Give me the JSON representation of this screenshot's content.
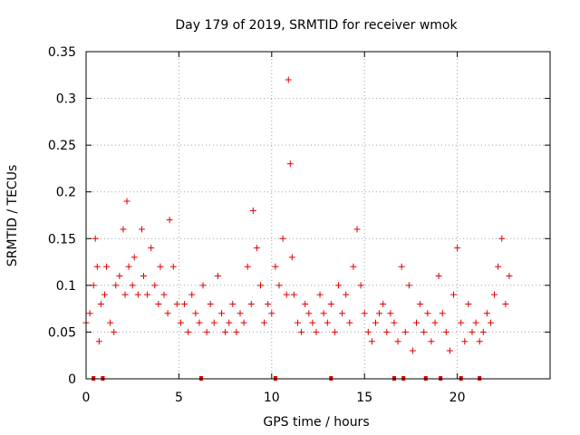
{
  "chart_data": {
    "type": "scatter",
    "title": "Day 179 of 2019, SRMTID for receiver wmok",
    "xlabel": "GPS time / hours",
    "ylabel": "SRMTID / TECUs",
    "xlim": [
      0,
      25
    ],
    "ylim": [
      0,
      0.35
    ],
    "x_ticks": [
      0,
      5,
      10,
      15,
      20
    ],
    "y_ticks": [
      0,
      0.05,
      0.1,
      0.15,
      0.2,
      0.25,
      0.3,
      0.35
    ],
    "x_tick_labels": [
      "0",
      "5",
      "10",
      "15",
      "20"
    ],
    "y_tick_labels": [
      "0",
      "0.05",
      "0.1",
      "0.15",
      "0.2",
      "0.25",
      "0.3",
      "0.35"
    ],
    "grid": true,
    "marker": "+",
    "color": "#e00000",
    "series": [
      {
        "name": "SRMTID",
        "x": [
          0.0,
          0.2,
          0.4,
          0.5,
          0.6,
          0.7,
          0.8,
          1.0,
          1.1,
          1.3,
          1.5,
          1.6,
          1.8,
          2.0,
          2.1,
          2.2,
          2.3,
          2.5,
          2.6,
          2.8,
          3.0,
          3.1,
          3.3,
          3.5,
          3.7,
          3.9,
          4.0,
          4.2,
          4.4,
          4.5,
          4.7,
          4.9,
          5.1,
          5.3,
          5.5,
          5.7,
          5.9,
          6.1,
          6.3,
          6.5,
          6.7,
          6.9,
          7.1,
          7.3,
          7.5,
          7.7,
          7.9,
          8.1,
          8.3,
          8.5,
          8.7,
          8.9,
          9.0,
          9.2,
          9.4,
          9.6,
          9.8,
          10.0,
          10.2,
          10.4,
          10.6,
          10.8,
          10.9,
          11.0,
          11.1,
          11.2,
          11.4,
          11.6,
          11.8,
          12.0,
          12.2,
          12.4,
          12.6,
          12.8,
          13.0,
          13.2,
          13.4,
          13.6,
          13.8,
          14.0,
          14.2,
          14.4,
          14.6,
          14.8,
          15.0,
          15.2,
          15.4,
          15.6,
          15.8,
          16.0,
          16.2,
          16.4,
          16.6,
          16.8,
          17.0,
          17.2,
          17.4,
          17.6,
          17.8,
          18.0,
          18.2,
          18.4,
          18.6,
          18.8,
          19.0,
          19.2,
          19.4,
          19.6,
          19.8,
          20.0,
          20.2,
          20.4,
          20.6,
          20.8,
          21.0,
          21.2,
          21.4,
          21.6,
          21.8,
          22.0,
          22.2,
          22.4,
          22.6,
          22.8
        ],
        "y": [
          0.06,
          0.07,
          0.1,
          0.15,
          0.12,
          0.04,
          0.08,
          0.09,
          0.12,
          0.06,
          0.05,
          0.1,
          0.11,
          0.16,
          0.09,
          0.19,
          0.12,
          0.1,
          0.13,
          0.09,
          0.16,
          0.11,
          0.09,
          0.14,
          0.1,
          0.08,
          0.12,
          0.09,
          0.07,
          0.17,
          0.12,
          0.08,
          0.06,
          0.08,
          0.05,
          0.09,
          0.07,
          0.06,
          0.1,
          0.05,
          0.08,
          0.06,
          0.11,
          0.07,
          0.05,
          0.06,
          0.08,
          0.05,
          0.07,
          0.06,
          0.12,
          0.08,
          0.18,
          0.14,
          0.1,
          0.06,
          0.08,
          0.07,
          0.12,
          0.1,
          0.15,
          0.09,
          0.32,
          0.23,
          0.13,
          0.09,
          0.06,
          0.05,
          0.08,
          0.07,
          0.06,
          0.05,
          0.09,
          0.07,
          0.06,
          0.08,
          0.05,
          0.1,
          0.07,
          0.09,
          0.06,
          0.12,
          0.16,
          0.1,
          0.07,
          0.05,
          0.04,
          0.06,
          0.07,
          0.08,
          0.05,
          0.07,
          0.06,
          0.04,
          0.12,
          0.05,
          0.1,
          0.03,
          0.06,
          0.08,
          0.05,
          0.07,
          0.04,
          0.06,
          0.11,
          0.07,
          0.05,
          0.03,
          0.09,
          0.14,
          0.06,
          0.04,
          0.08,
          0.05,
          0.06,
          0.04,
          0.05,
          0.07,
          0.06,
          0.09,
          0.12,
          0.15,
          0.08,
          0.11
        ],
        "zero_values_x": [
          0.4,
          0.9,
          6.2,
          10.2,
          13.2,
          16.6,
          17.1,
          18.3,
          19.1,
          20.2,
          21.2
        ]
      }
    ]
  }
}
